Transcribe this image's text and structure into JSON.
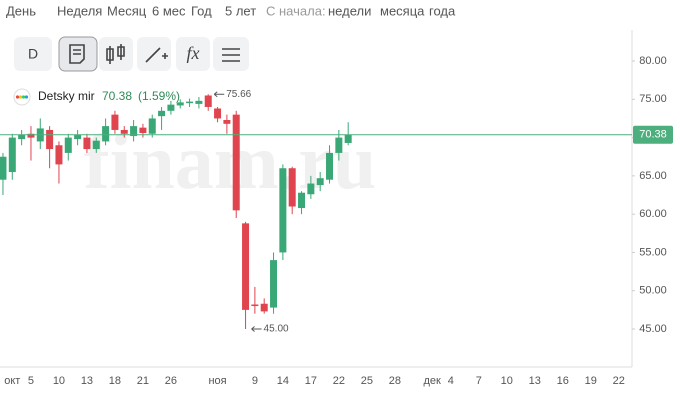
{
  "header": {
    "periods": [
      "День",
      "Неделя",
      "Месяц",
      "6 мес",
      "Год",
      "5 лет",
      "С начала:",
      "недели",
      "месяца",
      "года"
    ]
  },
  "toolbar": {
    "interval": "D"
  },
  "chart_data": {
    "type": "candlestick",
    "watermark": "finam.ru",
    "instrument": "Detsky mir",
    "last_price": 70.38,
    "change_label": "(1.59%)",
    "colors": {
      "up": "#3aa876",
      "down": "#e0444e",
      "last": "#4caf7d"
    },
    "categories": [
      null,
      "окт",
      null,
      "5",
      null,
      null,
      "10",
      null,
      null,
      "13",
      null,
      null,
      "18",
      null,
      null,
      "21",
      null,
      null,
      "26",
      null,
      null,
      null,
      null,
      "ноя",
      null,
      null,
      null,
      "9",
      null,
      null,
      "14",
      null,
      null,
      "17",
      null,
      null,
      "22",
      null,
      null,
      "25",
      null,
      null,
      "28",
      null,
      null,
      null,
      "дек",
      null,
      "4",
      null,
      null,
      "7",
      null,
      null,
      "10",
      null,
      null,
      "13",
      null,
      null,
      "16",
      null,
      null,
      "19",
      null,
      null,
      "22",
      null
    ],
    "open": [
      64.5,
      65.5,
      69.8,
      70.5,
      69.5,
      71,
      69,
      68,
      69.8,
      70,
      68.5,
      69.5,
      73,
      71,
      70.2,
      71.3,
      70.5,
      72.8,
      73.5,
      74.2,
      74.5,
      74.4,
      75.5,
      73.8,
      72.3,
      73,
      58.8,
      48.2,
      48.3,
      47.8,
      55,
      66,
      60.8,
      62.6,
      63.8,
      64.5,
      68,
      69.3,
      null,
      null,
      null,
      null,
      null,
      null,
      null,
      null,
      null,
      null,
      null,
      null,
      null,
      null,
      null,
      null,
      null,
      null,
      null,
      null,
      null,
      null,
      null,
      null,
      null,
      null,
      null,
      null,
      null,
      null
    ],
    "high": [
      68,
      70.5,
      71,
      71.5,
      72.5,
      71.5,
      69.5,
      70.5,
      71,
      70.5,
      70,
      72.5,
      73.5,
      71.5,
      72.3,
      71.8,
      73,
      74,
      74.8,
      75,
      75.1,
      75.3,
      75.66,
      74,
      73,
      73.5,
      59,
      50.5,
      49,
      55,
      66.5,
      66.2,
      63,
      65,
      65.5,
      69,
      71,
      72,
      null,
      null,
      null,
      null,
      null,
      null,
      null,
      null,
      null,
      null,
      null,
      null,
      null,
      null,
      null,
      null,
      null,
      null,
      null,
      null,
      null,
      null,
      null,
      null,
      null,
      null,
      null,
      null,
      null,
      null
    ],
    "low": [
      62.5,
      64.5,
      69,
      67,
      68.5,
      66,
      64,
      67,
      69,
      68,
      68,
      69,
      70.5,
      70,
      69.5,
      70,
      70,
      71,
      73,
      73.8,
      74,
      73.8,
      73.5,
      72,
      70.5,
      59.5,
      45,
      47,
      47,
      47,
      54,
      60,
      60,
      62,
      63,
      64,
      67,
      69,
      null,
      null,
      null,
      null,
      null,
      null,
      null,
      null,
      null,
      null,
      null,
      null,
      null,
      null,
      null,
      null,
      null,
      null,
      null,
      null,
      null,
      null,
      null,
      null,
      null,
      null,
      null,
      null,
      null,
      null
    ],
    "close": [
      67.5,
      70,
      70.4,
      70,
      71.2,
      68.5,
      66.5,
      70,
      70.4,
      68.5,
      69.6,
      71.5,
      71,
      70.5,
      71.5,
      70.6,
      72.5,
      73.5,
      74.3,
      74.6,
      74.7,
      74.8,
      74,
      72.5,
      71.8,
      60.5,
      47.5,
      48,
      47.3,
      54,
      66,
      61,
      62.8,
      64,
      64.7,
      68,
      70,
      70.38,
      null,
      null,
      null,
      null,
      null,
      null,
      null,
      null,
      null,
      null,
      null,
      null,
      null,
      null,
      null,
      null,
      null,
      null,
      null,
      null,
      null,
      null,
      null,
      null,
      null,
      null,
      null,
      null,
      null,
      null
    ],
    "annotations": [
      {
        "value": 75.66,
        "label": "75.66"
      },
      {
        "value": 45,
        "label": "45.00"
      }
    ],
    "ylim": [
      40.3,
      83.4
    ],
    "yticks": [
      {
        "value": 80,
        "label": "80.00"
      },
      {
        "value": 75,
        "label": "75.00"
      },
      {
        "value": 70,
        "label": "70.00"
      },
      {
        "value": 65,
        "label": "65.00"
      },
      {
        "value": 60,
        "label": "60.00"
      },
      {
        "value": 55,
        "label": "55.00"
      },
      {
        "value": 50,
        "label": "50.00"
      },
      {
        "value": 45,
        "label": "45.00"
      }
    ]
  }
}
